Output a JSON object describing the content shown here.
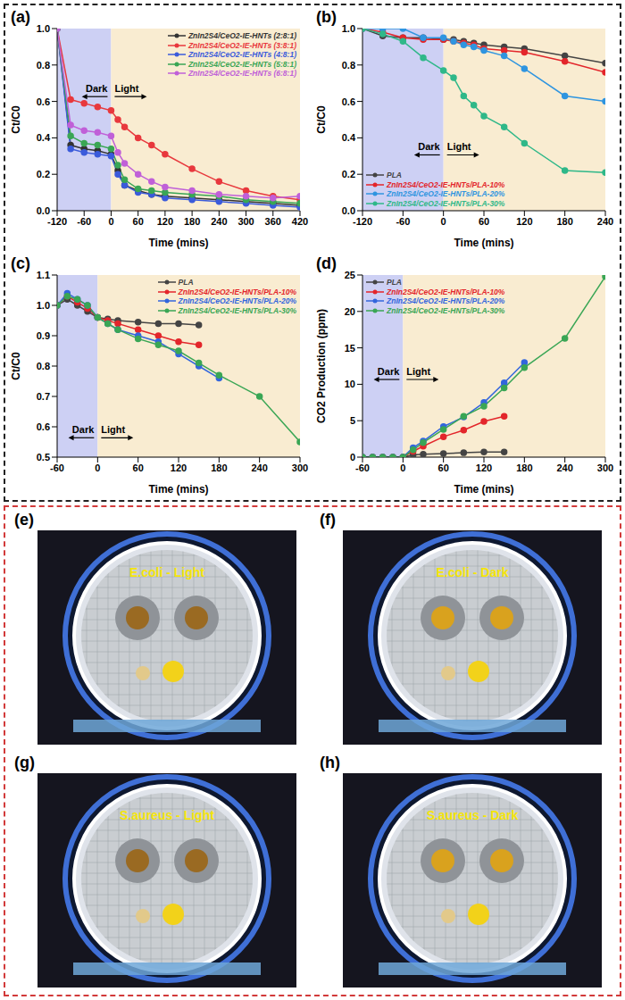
{
  "chart_data": [
    {
      "type": "line",
      "panel": "(a)",
      "x_label": "Time (mins)",
      "y_label": "Ct/C0",
      "xlim": [
        -120,
        420
      ],
      "xticks": [
        -120,
        -60,
        0,
        60,
        120,
        180,
        240,
        300,
        360,
        420
      ],
      "ylim": [
        0,
        1
      ],
      "yticks": [
        {
          "value": 0,
          "label": "0.0"
        },
        0.2,
        0.4,
        0.6,
        0.8,
        {
          "value": 1,
          "label": "1.0"
        }
      ],
      "legend": "upper right",
      "marker": "circle",
      "regions": [
        {
          "label": "Dark",
          "x": [
            -120,
            0
          ],
          "color": "#cdd0f4"
        },
        {
          "label": "Light",
          "x": [
            0,
            420
          ],
          "color": "#f9ecd1"
        }
      ],
      "series": [
        {
          "name": "ZnIn2S4/CeO2-IE-HNTs (2:8:1)",
          "color": "#333333",
          "x": [
            -120,
            -90,
            -60,
            -30,
            0,
            15,
            30,
            60,
            90,
            120,
            180,
            240,
            300,
            360,
            420
          ],
          "values": [
            1,
            0.36,
            0.34,
            0.33,
            0.31,
            0.22,
            0.14,
            0.11,
            0.09,
            0.08,
            0.07,
            0.06,
            0.05,
            0.04,
            0.03
          ]
        },
        {
          "name": "ZnIn2S4/CeO2-IE-HNTs (3:8:1)",
          "color": "#e8383d",
          "x": [
            -120,
            -90,
            -60,
            -30,
            0,
            15,
            30,
            60,
            90,
            120,
            180,
            240,
            300,
            360,
            420
          ],
          "values": [
            1,
            0.61,
            0.59,
            0.57,
            0.55,
            0.5,
            0.46,
            0.4,
            0.36,
            0.31,
            0.23,
            0.16,
            0.11,
            0.08,
            0.06
          ]
        },
        {
          "name": "ZnIn2S4/CeO2-IE-HNTs (4:8:1)",
          "color": "#3b5bdb",
          "x": [
            -120,
            -90,
            -60,
            -30,
            0,
            15,
            30,
            60,
            90,
            120,
            180,
            240,
            300,
            360,
            420
          ],
          "values": [
            1,
            0.34,
            0.32,
            0.31,
            0.3,
            0.2,
            0.14,
            0.1,
            0.09,
            0.07,
            0.06,
            0.05,
            0.04,
            0.03,
            0.02
          ]
        },
        {
          "name": "ZnIn2S4/CeO2-IE-HNTs (5:8:1)",
          "color": "#3aa655",
          "x": [
            -120,
            -90,
            -60,
            -30,
            0,
            15,
            30,
            60,
            90,
            120,
            180,
            240,
            300,
            360,
            420
          ],
          "values": [
            1,
            0.41,
            0.37,
            0.36,
            0.34,
            0.25,
            0.17,
            0.12,
            0.11,
            0.1,
            0.09,
            0.08,
            0.06,
            0.05,
            0.04
          ]
        },
        {
          "name": "ZnIn2S4/CeO2-IE-HNTs (6:8:1)",
          "color": "#c060d8",
          "x": [
            -120,
            -90,
            -60,
            -30,
            0,
            15,
            30,
            60,
            90,
            120,
            180,
            240,
            300,
            360,
            420
          ],
          "values": [
            1,
            0.47,
            0.44,
            0.43,
            0.41,
            0.32,
            0.26,
            0.2,
            0.16,
            0.13,
            0.11,
            0.09,
            0.08,
            0.07,
            0.08
          ]
        }
      ]
    },
    {
      "type": "line",
      "panel": "(b)",
      "x_label": "Time (mins)",
      "y_label": "Ct/C0",
      "xlim": [
        -120,
        240
      ],
      "xticks": [
        -120,
        -60,
        0,
        60,
        120,
        180,
        240
      ],
      "ylim": [
        0,
        1
      ],
      "yticks": [
        {
          "value": 0,
          "label": "0.0"
        },
        0.2,
        0.4,
        0.6,
        0.8,
        {
          "value": 1,
          "label": "1.0"
        }
      ],
      "legend": "lower left",
      "marker": "circle",
      "regions": [
        {
          "label": "Dark",
          "x": [
            -120,
            0
          ],
          "color": "#cdd0f4"
        },
        {
          "label": "Light",
          "x": [
            0,
            240
          ],
          "color": "#f9ecd1"
        }
      ],
      "series": [
        {
          "name": "PLA",
          "color": "#444444",
          "x": [
            -120,
            -90,
            -60,
            -30,
            0,
            15,
            30,
            45,
            60,
            90,
            120,
            180,
            240
          ],
          "values": [
            1,
            0.96,
            0.95,
            0.95,
            0.94,
            0.94,
            0.93,
            0.92,
            0.91,
            0.9,
            0.89,
            0.85,
            0.81
          ]
        },
        {
          "name": "ZnIn2S4/CeO2-IE-HNTs/PLA-10%",
          "color": "#e3262b",
          "x": [
            -120,
            -90,
            -60,
            -30,
            0,
            15,
            30,
            45,
            60,
            90,
            120,
            180,
            240
          ],
          "values": [
            1,
            0.98,
            0.95,
            0.94,
            0.94,
            0.93,
            0.92,
            0.91,
            0.89,
            0.88,
            0.87,
            0.82,
            0.76
          ]
        },
        {
          "name": "ZnIn2S4/CeO2-IE-HNTs/PLA-20%",
          "color": "#2f95e0",
          "x": [
            -120,
            -90,
            -60,
            -30,
            0,
            15,
            30,
            45,
            60,
            90,
            120,
            180,
            240
          ],
          "values": [
            1,
            1,
            1,
            0.95,
            0.95,
            0.93,
            0.91,
            0.9,
            0.88,
            0.85,
            0.78,
            0.63,
            0.6
          ]
        },
        {
          "name": "ZnIn2S4/CeO2-IE-HNTs/PLA-30%",
          "color": "#2fb889",
          "x": [
            -120,
            -90,
            -60,
            -30,
            0,
            15,
            30,
            45,
            60,
            90,
            120,
            180,
            240
          ],
          "values": [
            1,
            0.97,
            0.93,
            0.84,
            0.77,
            0.73,
            0.63,
            0.58,
            0.52,
            0.46,
            0.37,
            0.22,
            0.21
          ]
        }
      ]
    },
    {
      "type": "line",
      "panel": "(c)",
      "x_label": "Time (mins)",
      "y_label": "Ct/C0",
      "xlim": [
        -60,
        300
      ],
      "xticks": [
        -60,
        0,
        60,
        120,
        180,
        240,
        300
      ],
      "ylim": [
        0.5,
        1.1
      ],
      "yticks": [
        0.5,
        0.6,
        0.7,
        0.8,
        0.9,
        {
          "value": 1,
          "label": "1.0"
        },
        1.1
      ],
      "legend": "upper right",
      "marker": "circle",
      "regions": [
        {
          "label": "Dark",
          "x": [
            -60,
            0
          ],
          "color": "#cdd0f4"
        },
        {
          "label": "Light",
          "x": [
            0,
            300
          ],
          "color": "#f9ecd1"
        }
      ],
      "series": [
        {
          "name": "PLA",
          "color": "#444444",
          "x": [
            -60,
            -45,
            -30,
            -15,
            0,
            15,
            30,
            60,
            90,
            120,
            150
          ],
          "values": [
            1,
            1.02,
            1,
            0.98,
            0.96,
            0.955,
            0.95,
            0.945,
            0.94,
            0.94,
            0.935
          ]
        },
        {
          "name": "ZnIn2S4/CeO2-IE-HNTs/PLA-10%",
          "color": "#e3262b",
          "x": [
            -60,
            -45,
            -30,
            -15,
            0,
            15,
            30,
            60,
            90,
            120,
            150
          ],
          "values": [
            1,
            1.03,
            1.01,
            0.99,
            0.96,
            0.95,
            0.94,
            0.92,
            0.9,
            0.88,
            0.87
          ]
        },
        {
          "name": "ZnIn2S4/CeO2-IE-HNTs/PLA-20%",
          "color": "#3366dd",
          "x": [
            -60,
            -45,
            -30,
            -15,
            0,
            15,
            30,
            60,
            90,
            120,
            150,
            180
          ],
          "values": [
            1,
            1.04,
            1.02,
            1,
            0.96,
            0.94,
            0.92,
            0.9,
            0.88,
            0.84,
            0.8,
            0.76
          ]
        },
        {
          "name": "ZnIn2S4/CeO2-IE-HNTs/PLA-30%",
          "color": "#3aa655",
          "x": [
            -60,
            -45,
            -30,
            -15,
            0,
            15,
            30,
            60,
            90,
            120,
            150,
            180,
            240,
            300
          ],
          "values": [
            1,
            1.03,
            1.02,
            1,
            0.96,
            0.94,
            0.92,
            0.89,
            0.87,
            0.85,
            0.81,
            0.77,
            0.7,
            0.55
          ]
        }
      ]
    },
    {
      "type": "line",
      "panel": "(d)",
      "x_label": "Time (mins)",
      "y_label": "CO2 Production (ppm)",
      "xlim": [
        -60,
        300
      ],
      "xticks": [
        -60,
        0,
        60,
        120,
        180,
        240,
        300
      ],
      "ylim": [
        0,
        25
      ],
      "yticks": [
        0,
        5,
        10,
        15,
        20,
        25
      ],
      "legend": "upper left",
      "marker": "circle",
      "regions": [
        {
          "label": "Dark",
          "x": [
            -60,
            0
          ],
          "color": "#cdd0f4"
        },
        {
          "label": "Light",
          "x": [
            0,
            300
          ],
          "color": "#f9ecd1"
        }
      ],
      "series": [
        {
          "name": "PLA",
          "color": "#444444",
          "x": [
            -60,
            -45,
            -30,
            -15,
            0,
            15,
            30,
            60,
            90,
            120,
            150
          ],
          "values": [
            0,
            0,
            0,
            0,
            0,
            0.3,
            0.4,
            0.5,
            0.6,
            0.7,
            0.7
          ]
        },
        {
          "name": "ZnIn2S4/CeO2-IE-HNTs/PLA-10%",
          "color": "#e3262b",
          "x": [
            -60,
            -45,
            -30,
            -15,
            0,
            15,
            30,
            60,
            90,
            120,
            150
          ],
          "values": [
            0,
            0,
            0,
            0,
            0,
            0.8,
            1.5,
            2.8,
            3.7,
            4.9,
            5.6
          ]
        },
        {
          "name": "ZnIn2S4/CeO2-IE-HNTs/PLA-20%",
          "color": "#3366dd",
          "x": [
            -60,
            -45,
            -30,
            -15,
            0,
            15,
            30,
            60,
            90,
            120,
            150,
            180
          ],
          "values": [
            0,
            0,
            0,
            0,
            0,
            1.3,
            2.2,
            4.2,
            5.5,
            7.5,
            10.2,
            13
          ]
        },
        {
          "name": "ZnIn2S4/CeO2-IE-HNTs/PLA-30%",
          "color": "#3aa655",
          "x": [
            -60,
            -45,
            -30,
            -15,
            0,
            15,
            30,
            60,
            90,
            120,
            150,
            180,
            240,
            300
          ],
          "values": [
            0,
            0,
            0,
            0,
            0,
            1,
            2,
            3.8,
            5.6,
            7,
            9.5,
            12.3,
            16.3,
            24.8
          ]
        }
      ]
    }
  ],
  "photos": [
    {
      "panel": "(e)",
      "label": "E.coli - Light"
    },
    {
      "panel": "(f)",
      "label": "E.coli - Dark"
    },
    {
      "panel": "(g)",
      "label": "S.aureus - Light"
    },
    {
      "panel": "(h)",
      "label": "S.aureus - Dark"
    }
  ]
}
